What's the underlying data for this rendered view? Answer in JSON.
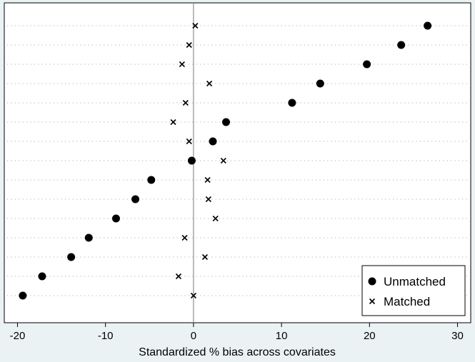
{
  "chart_data": {
    "type": "scatter",
    "title": "",
    "xlabel": "Standardized % bias across covariates",
    "ylabel": "",
    "xlim": [
      -21.5,
      31.5
    ],
    "xticks": [
      -20,
      -10,
      0,
      10,
      20,
      30
    ],
    "xtick_labels": [
      "-20",
      "-10",
      "0",
      "10",
      "20",
      "30"
    ],
    "reference_line_x": 0,
    "rows": 15,
    "grid": "horizontal dotted lines at each covariate row",
    "legend_position": "bottom-right",
    "series": [
      {
        "name": "Unmatched",
        "marker": "filled-circle",
        "values": [
          26.6,
          23.6,
          19.7,
          14.4,
          11.2,
          3.7,
          2.2,
          -0.2,
          -4.8,
          -6.6,
          -8.8,
          -11.9,
          -13.9,
          -17.2,
          -19.4
        ]
      },
      {
        "name": "Matched",
        "marker": "x",
        "values": [
          0.2,
          -0.5,
          -1.3,
          1.8,
          -0.9,
          -2.3,
          -0.5,
          3.4,
          1.6,
          1.7,
          2.5,
          -1.0,
          1.3,
          -1.7,
          0.0
        ]
      }
    ],
    "colors": {
      "background": "#eaf2f3",
      "plot_area": "#ffffff",
      "markers": "#000000",
      "reference_line": "#909090",
      "gridlines": "#b0b0b0"
    }
  }
}
